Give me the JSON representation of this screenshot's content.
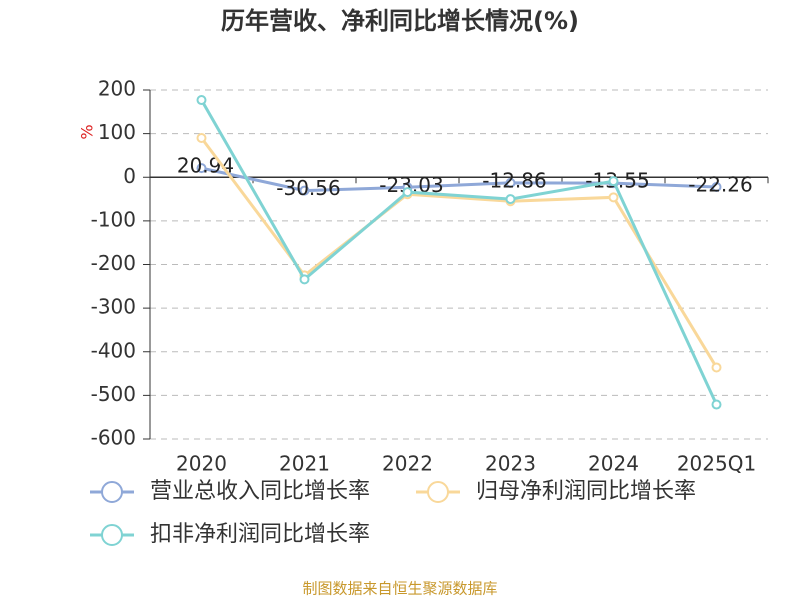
{
  "chart_data": {
    "type": "line",
    "title": "历年营收、净利同比增长情况(%)",
    "y_label": "%",
    "categories": [
      "2020",
      "2021",
      "2022",
      "2023",
      "2024",
      "2025Q1"
    ],
    "series": [
      {
        "name": "营业总收入同比增长率",
        "color": "#8fa8d8",
        "values": [
          20.94,
          -30.56,
          -23.03,
          -12.86,
          -13.55,
          -22.26
        ],
        "show_labels": true
      },
      {
        "name": "归母净利润同比增长率",
        "color": "#f9d89a",
        "values": [
          90,
          -225,
          -39,
          -55,
          -46,
          -436
        ]
      },
      {
        "name": "扣非净利润同比增长率",
        "color": "#7fd3d3",
        "values": [
          177,
          -234,
          -34,
          -50,
          -9,
          -521
        ]
      }
    ],
    "ylim": [
      -600,
      200
    ],
    "yticks": [
      -600,
      -500,
      -400,
      -300,
      -200,
      -100,
      0,
      100,
      200
    ],
    "grid": true,
    "source": "制图数据来自恒生聚源数据库"
  }
}
